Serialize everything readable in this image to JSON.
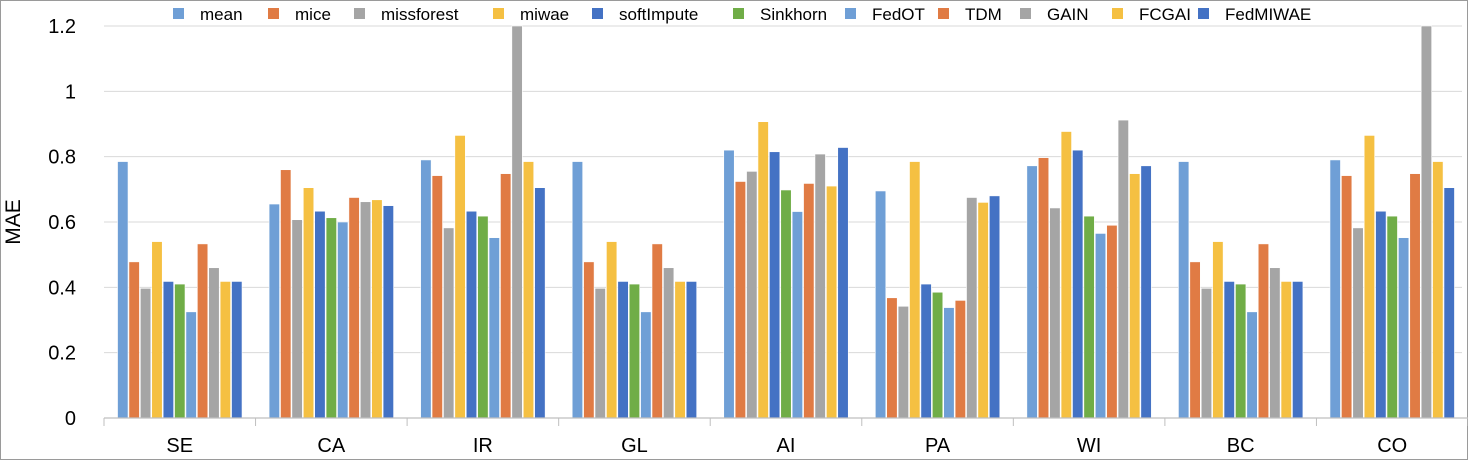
{
  "chart_data": {
    "type": "bar",
    "title": "",
    "xlabel": "",
    "ylabel": "MAE",
    "ylim": [
      0,
      1.2
    ],
    "yticks": [
      "0",
      "0.2",
      "0.4",
      "0.6",
      "0.8",
      "1",
      "1.2"
    ],
    "categories": [
      "SE",
      "CA",
      "IR",
      "GL",
      "AI",
      "PA",
      "WI",
      "BC",
      "CO"
    ],
    "legend_position": "top",
    "grid": true,
    "series": [
      {
        "name": "mean",
        "color": "#6f9fd6",
        "values": [
          0.785,
          0.655,
          0.79,
          0.785,
          0.82,
          0.695,
          0.772,
          0.785,
          0.79
        ]
      },
      {
        "name": "mice",
        "color": "#e07b44",
        "values": [
          0.478,
          0.76,
          0.742,
          0.478,
          0.724,
          0.368,
          0.797,
          0.478,
          0.742
        ]
      },
      {
        "name": "missforest",
        "color": "#a5a5a5",
        "values": [
          0.397,
          0.607,
          0.582,
          0.397,
          0.755,
          0.342,
          0.643,
          0.397,
          0.582
        ]
      },
      {
        "name": "miwae",
        "color": "#f5c042",
        "values": [
          0.54,
          0.705,
          0.865,
          0.54,
          0.907,
          0.785,
          0.877,
          0.54,
          0.865
        ]
      },
      {
        "name": "softImpute",
        "color": "#4472c4",
        "values": [
          0.418,
          0.633,
          0.633,
          0.418,
          0.815,
          0.41,
          0.82,
          0.418,
          0.633
        ]
      },
      {
        "name": "Sinkhorn",
        "color": "#70ad47",
        "values": [
          0.41,
          0.613,
          0.618,
          0.41,
          0.698,
          0.385,
          0.618,
          0.41,
          0.618
        ]
      },
      {
        "name": "FedOT",
        "color": "#6f9fd6",
        "values": [
          0.325,
          0.6,
          0.552,
          0.325,
          0.632,
          0.338,
          0.565,
          0.325,
          0.552
        ]
      },
      {
        "name": "TDM",
        "color": "#e07b44",
        "values": [
          0.533,
          0.675,
          0.748,
          0.533,
          0.718,
          0.36,
          0.59,
          0.533,
          0.748
        ]
      },
      {
        "name": "GAIN",
        "color": "#a5a5a5",
        "values": [
          0.46,
          0.662,
          1.2,
          0.46,
          0.808,
          0.675,
          0.912,
          0.46,
          1.2
        ]
      },
      {
        "name": "FCGAI",
        "color": "#f5c042",
        "values": [
          0.418,
          0.668,
          0.785,
          0.418,
          0.71,
          0.66,
          0.748,
          0.418,
          0.785
        ]
      },
      {
        "name": "FedMIWAE",
        "color": "#4472c4",
        "values": [
          0.418,
          0.65,
          0.705,
          0.418,
          0.828,
          0.68,
          0.772,
          0.418,
          0.705
        ]
      }
    ]
  }
}
